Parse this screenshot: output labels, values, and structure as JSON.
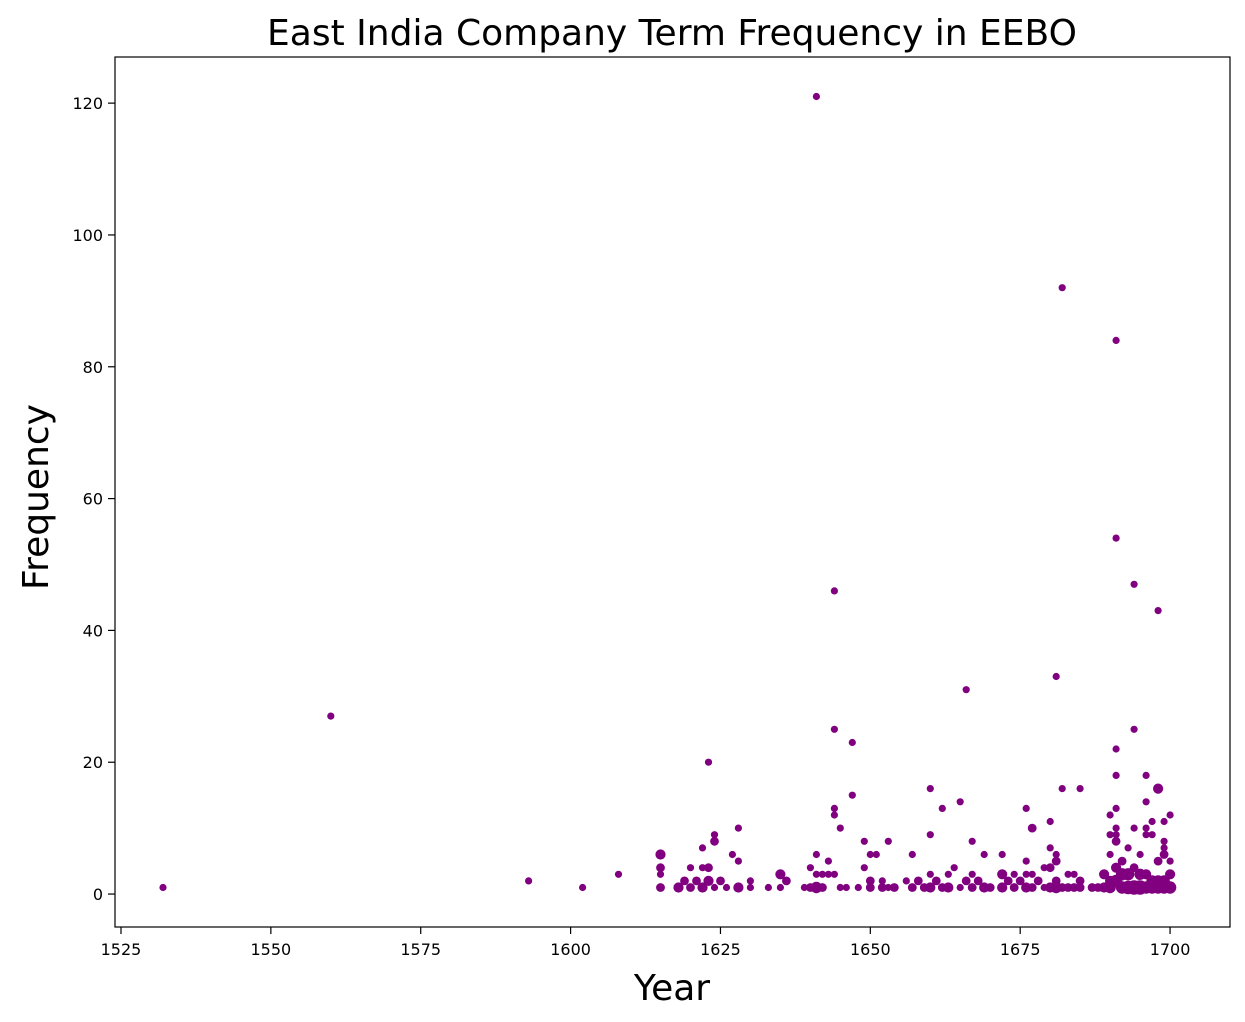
{
  "chart_data": {
    "type": "scatter",
    "title": "East India Company Term Frequency in EEBO",
    "xlabel": "Year",
    "ylabel": "Frequency",
    "xlim": [
      1524,
      1710
    ],
    "ylim": [
      -5,
      127
    ],
    "xticks": [
      1525,
      1550,
      1575,
      1600,
      1625,
      1650,
      1675,
      1700
    ],
    "yticks": [
      0,
      20,
      40,
      60,
      80,
      100,
      120
    ],
    "grid": false,
    "legend": "none",
    "color": "#800080",
    "points": [
      {
        "x": 1532,
        "y": 1,
        "s": 1
      },
      {
        "x": 1560,
        "y": 27,
        "s": 1
      },
      {
        "x": 1593,
        "y": 2,
        "s": 1
      },
      {
        "x": 1602,
        "y": 1,
        "s": 1
      },
      {
        "x": 1608,
        "y": 3,
        "s": 1
      },
      {
        "x": 1615,
        "y": 6,
        "s": 2
      },
      {
        "x": 1615,
        "y": 4,
        "s": 1.5
      },
      {
        "x": 1615,
        "y": 3,
        "s": 1
      },
      {
        "x": 1615,
        "y": 1,
        "s": 1.5
      },
      {
        "x": 1618,
        "y": 1,
        "s": 2
      },
      {
        "x": 1619,
        "y": 2,
        "s": 1.5
      },
      {
        "x": 1620,
        "y": 1,
        "s": 1.5
      },
      {
        "x": 1620,
        "y": 4,
        "s": 1
      },
      {
        "x": 1621,
        "y": 2,
        "s": 1.5
      },
      {
        "x": 1622,
        "y": 1,
        "s": 2
      },
      {
        "x": 1622,
        "y": 7,
        "s": 1
      },
      {
        "x": 1622,
        "y": 4,
        "s": 1
      },
      {
        "x": 1623,
        "y": 20,
        "s": 1
      },
      {
        "x": 1623,
        "y": 2,
        "s": 2
      },
      {
        "x": 1623,
        "y": 4,
        "s": 1.5
      },
      {
        "x": 1624,
        "y": 9,
        "s": 1
      },
      {
        "x": 1624,
        "y": 8,
        "s": 1.5
      },
      {
        "x": 1624,
        "y": 1,
        "s": 1
      },
      {
        "x": 1625,
        "y": 2,
        "s": 1.5
      },
      {
        "x": 1626,
        "y": 1,
        "s": 1
      },
      {
        "x": 1627,
        "y": 6,
        "s": 1
      },
      {
        "x": 1628,
        "y": 10,
        "s": 1
      },
      {
        "x": 1628,
        "y": 5,
        "s": 1
      },
      {
        "x": 1628,
        "y": 1,
        "s": 2
      },
      {
        "x": 1630,
        "y": 2,
        "s": 1
      },
      {
        "x": 1630,
        "y": 1,
        "s": 1
      },
      {
        "x": 1633,
        "y": 1,
        "s": 1
      },
      {
        "x": 1635,
        "y": 3,
        "s": 2
      },
      {
        "x": 1635,
        "y": 1,
        "s": 1
      },
      {
        "x": 1636,
        "y": 2,
        "s": 1.5
      },
      {
        "x": 1639,
        "y": 1,
        "s": 1
      },
      {
        "x": 1640,
        "y": 4,
        "s": 1
      },
      {
        "x": 1640,
        "y": 1,
        "s": 1.5
      },
      {
        "x": 1641,
        "y": 121,
        "s": 1
      },
      {
        "x": 1641,
        "y": 6,
        "s": 1
      },
      {
        "x": 1641,
        "y": 3,
        "s": 1
      },
      {
        "x": 1641,
        "y": 1,
        "s": 2.5
      },
      {
        "x": 1642,
        "y": 3,
        "s": 1
      },
      {
        "x": 1642,
        "y": 1,
        "s": 1.5
      },
      {
        "x": 1643,
        "y": 5,
        "s": 1
      },
      {
        "x": 1643,
        "y": 3,
        "s": 1
      },
      {
        "x": 1644,
        "y": 46,
        "s": 1
      },
      {
        "x": 1644,
        "y": 25,
        "s": 1
      },
      {
        "x": 1644,
        "y": 13,
        "s": 1
      },
      {
        "x": 1644,
        "y": 12,
        "s": 1
      },
      {
        "x": 1644,
        "y": 3,
        "s": 1
      },
      {
        "x": 1645,
        "y": 10,
        "s": 1
      },
      {
        "x": 1645,
        "y": 1,
        "s": 1
      },
      {
        "x": 1646,
        "y": 1,
        "s": 1
      },
      {
        "x": 1647,
        "y": 23,
        "s": 1
      },
      {
        "x": 1647,
        "y": 15,
        "s": 1
      },
      {
        "x": 1648,
        "y": 1,
        "s": 1
      },
      {
        "x": 1649,
        "y": 8,
        "s": 1
      },
      {
        "x": 1649,
        "y": 4,
        "s": 1
      },
      {
        "x": 1650,
        "y": 6,
        "s": 1
      },
      {
        "x": 1650,
        "y": 2,
        "s": 1.5
      },
      {
        "x": 1650,
        "y": 1,
        "s": 1.5
      },
      {
        "x": 1651,
        "y": 6,
        "s": 1
      },
      {
        "x": 1652,
        "y": 2,
        "s": 1
      },
      {
        "x": 1652,
        "y": 1,
        "s": 1.5
      },
      {
        "x": 1653,
        "y": 8,
        "s": 1
      },
      {
        "x": 1653,
        "y": 1,
        "s": 1
      },
      {
        "x": 1654,
        "y": 1,
        "s": 1.5
      },
      {
        "x": 1656,
        "y": 2,
        "s": 1
      },
      {
        "x": 1657,
        "y": 6,
        "s": 1
      },
      {
        "x": 1657,
        "y": 1,
        "s": 1.5
      },
      {
        "x": 1658,
        "y": 2,
        "s": 1.5
      },
      {
        "x": 1659,
        "y": 1,
        "s": 1.5
      },
      {
        "x": 1660,
        "y": 16,
        "s": 1
      },
      {
        "x": 1660,
        "y": 9,
        "s": 1
      },
      {
        "x": 1660,
        "y": 3,
        "s": 1
      },
      {
        "x": 1660,
        "y": 1,
        "s": 2
      },
      {
        "x": 1661,
        "y": 2,
        "s": 1.5
      },
      {
        "x": 1662,
        "y": 13,
        "s": 1
      },
      {
        "x": 1662,
        "y": 1,
        "s": 1.5
      },
      {
        "x": 1663,
        "y": 3,
        "s": 1
      },
      {
        "x": 1663,
        "y": 1,
        "s": 2
      },
      {
        "x": 1664,
        "y": 4,
        "s": 1
      },
      {
        "x": 1665,
        "y": 14,
        "s": 1
      },
      {
        "x": 1665,
        "y": 1,
        "s": 1
      },
      {
        "x": 1666,
        "y": 31,
        "s": 1
      },
      {
        "x": 1666,
        "y": 2,
        "s": 1.5
      },
      {
        "x": 1667,
        "y": 8,
        "s": 1
      },
      {
        "x": 1667,
        "y": 3,
        "s": 1
      },
      {
        "x": 1667,
        "y": 1,
        "s": 1.5
      },
      {
        "x": 1668,
        "y": 2,
        "s": 1.5
      },
      {
        "x": 1669,
        "y": 6,
        "s": 1
      },
      {
        "x": 1669,
        "y": 1,
        "s": 2
      },
      {
        "x": 1670,
        "y": 1,
        "s": 1.5
      },
      {
        "x": 1672,
        "y": 6,
        "s": 1
      },
      {
        "x": 1672,
        "y": 3,
        "s": 2
      },
      {
        "x": 1672,
        "y": 1,
        "s": 2
      },
      {
        "x": 1673,
        "y": 2,
        "s": 1.5
      },
      {
        "x": 1674,
        "y": 3,
        "s": 1
      },
      {
        "x": 1674,
        "y": 1,
        "s": 1.5
      },
      {
        "x": 1675,
        "y": 2,
        "s": 1.5
      },
      {
        "x": 1676,
        "y": 13,
        "s": 1
      },
      {
        "x": 1676,
        "y": 5,
        "s": 1
      },
      {
        "x": 1676,
        "y": 3,
        "s": 1
      },
      {
        "x": 1676,
        "y": 1,
        "s": 2
      },
      {
        "x": 1677,
        "y": 10,
        "s": 1.5
      },
      {
        "x": 1677,
        "y": 3,
        "s": 1
      },
      {
        "x": 1677,
        "y": 1,
        "s": 1.5
      },
      {
        "x": 1678,
        "y": 2,
        "s": 1.5
      },
      {
        "x": 1679,
        "y": 4,
        "s": 1
      },
      {
        "x": 1679,
        "y": 1,
        "s": 1
      },
      {
        "x": 1680,
        "y": 11,
        "s": 1
      },
      {
        "x": 1680,
        "y": 7,
        "s": 1
      },
      {
        "x": 1680,
        "y": 4,
        "s": 1.5
      },
      {
        "x": 1680,
        "y": 1,
        "s": 2
      },
      {
        "x": 1681,
        "y": 33,
        "s": 1
      },
      {
        "x": 1681,
        "y": 6,
        "s": 1
      },
      {
        "x": 1681,
        "y": 5,
        "s": 1.5
      },
      {
        "x": 1681,
        "y": 2,
        "s": 1.5
      },
      {
        "x": 1681,
        "y": 1,
        "s": 2.5
      },
      {
        "x": 1682,
        "y": 92,
        "s": 1
      },
      {
        "x": 1682,
        "y": 16,
        "s": 1
      },
      {
        "x": 1682,
        "y": 1,
        "s": 1.5
      },
      {
        "x": 1683,
        "y": 3,
        "s": 1
      },
      {
        "x": 1683,
        "y": 1,
        "s": 1.5
      },
      {
        "x": 1684,
        "y": 3,
        "s": 1
      },
      {
        "x": 1684,
        "y": 1,
        "s": 1.5
      },
      {
        "x": 1685,
        "y": 16,
        "s": 1
      },
      {
        "x": 1685,
        "y": 2,
        "s": 1.5
      },
      {
        "x": 1685,
        "y": 1,
        "s": 1.5
      },
      {
        "x": 1687,
        "y": 1,
        "s": 1.5
      },
      {
        "x": 1688,
        "y": 1,
        "s": 1.5
      },
      {
        "x": 1689,
        "y": 3,
        "s": 2
      },
      {
        "x": 1689,
        "y": 1,
        "s": 2
      },
      {
        "x": 1690,
        "y": 12,
        "s": 1
      },
      {
        "x": 1690,
        "y": 9,
        "s": 1
      },
      {
        "x": 1690,
        "y": 6,
        "s": 1
      },
      {
        "x": 1690,
        "y": 2,
        "s": 2
      },
      {
        "x": 1690,
        "y": 1,
        "s": 2.5
      },
      {
        "x": 1691,
        "y": 84,
        "s": 1
      },
      {
        "x": 1691,
        "y": 54,
        "s": 1
      },
      {
        "x": 1691,
        "y": 22,
        "s": 1
      },
      {
        "x": 1691,
        "y": 18,
        "s": 1
      },
      {
        "x": 1691,
        "y": 13,
        "s": 1
      },
      {
        "x": 1691,
        "y": 10,
        "s": 1
      },
      {
        "x": 1691,
        "y": 9,
        "s": 1
      },
      {
        "x": 1691,
        "y": 8,
        "s": 1.5
      },
      {
        "x": 1691,
        "y": 4,
        "s": 2
      },
      {
        "x": 1691,
        "y": 2,
        "s": 3
      },
      {
        "x": 1692,
        "y": 5,
        "s": 1.5
      },
      {
        "x": 1692,
        "y": 3,
        "s": 3
      },
      {
        "x": 1692,
        "y": 1,
        "s": 3
      },
      {
        "x": 1693,
        "y": 7,
        "s": 1
      },
      {
        "x": 1693,
        "y": 3,
        "s": 3
      },
      {
        "x": 1693,
        "y": 1,
        "s": 3.5
      },
      {
        "x": 1694,
        "y": 47,
        "s": 1
      },
      {
        "x": 1694,
        "y": 25,
        "s": 1
      },
      {
        "x": 1694,
        "y": 10,
        "s": 1
      },
      {
        "x": 1694,
        "y": 4,
        "s": 1.5
      },
      {
        "x": 1694,
        "y": 1,
        "s": 4
      },
      {
        "x": 1695,
        "y": 6,
        "s": 1
      },
      {
        "x": 1695,
        "y": 3,
        "s": 2.5
      },
      {
        "x": 1695,
        "y": 1,
        "s": 4
      },
      {
        "x": 1696,
        "y": 18,
        "s": 1
      },
      {
        "x": 1696,
        "y": 14,
        "s": 1
      },
      {
        "x": 1696,
        "y": 10,
        "s": 1
      },
      {
        "x": 1696,
        "y": 9,
        "s": 1
      },
      {
        "x": 1696,
        "y": 3,
        "s": 2
      },
      {
        "x": 1696,
        "y": 1,
        "s": 3
      },
      {
        "x": 1697,
        "y": 11,
        "s": 1
      },
      {
        "x": 1697,
        "y": 9,
        "s": 1
      },
      {
        "x": 1697,
        "y": 2,
        "s": 2.5
      },
      {
        "x": 1697,
        "y": 1,
        "s": 3
      },
      {
        "x": 1698,
        "y": 43,
        "s": 1
      },
      {
        "x": 1698,
        "y": 16,
        "s": 2
      },
      {
        "x": 1698,
        "y": 5,
        "s": 1.5
      },
      {
        "x": 1698,
        "y": 2,
        "s": 2.5
      },
      {
        "x": 1698,
        "y": 1,
        "s": 3
      },
      {
        "x": 1699,
        "y": 11,
        "s": 1
      },
      {
        "x": 1699,
        "y": 8,
        "s": 1
      },
      {
        "x": 1699,
        "y": 7,
        "s": 1
      },
      {
        "x": 1699,
        "y": 6,
        "s": 1.5
      },
      {
        "x": 1699,
        "y": 2,
        "s": 2.5
      },
      {
        "x": 1699,
        "y": 1,
        "s": 3
      },
      {
        "x": 1700,
        "y": 12,
        "s": 1
      },
      {
        "x": 1700,
        "y": 5,
        "s": 1
      },
      {
        "x": 1700,
        "y": 3,
        "s": 2
      },
      {
        "x": 1700,
        "y": 1,
        "s": 3
      }
    ]
  }
}
